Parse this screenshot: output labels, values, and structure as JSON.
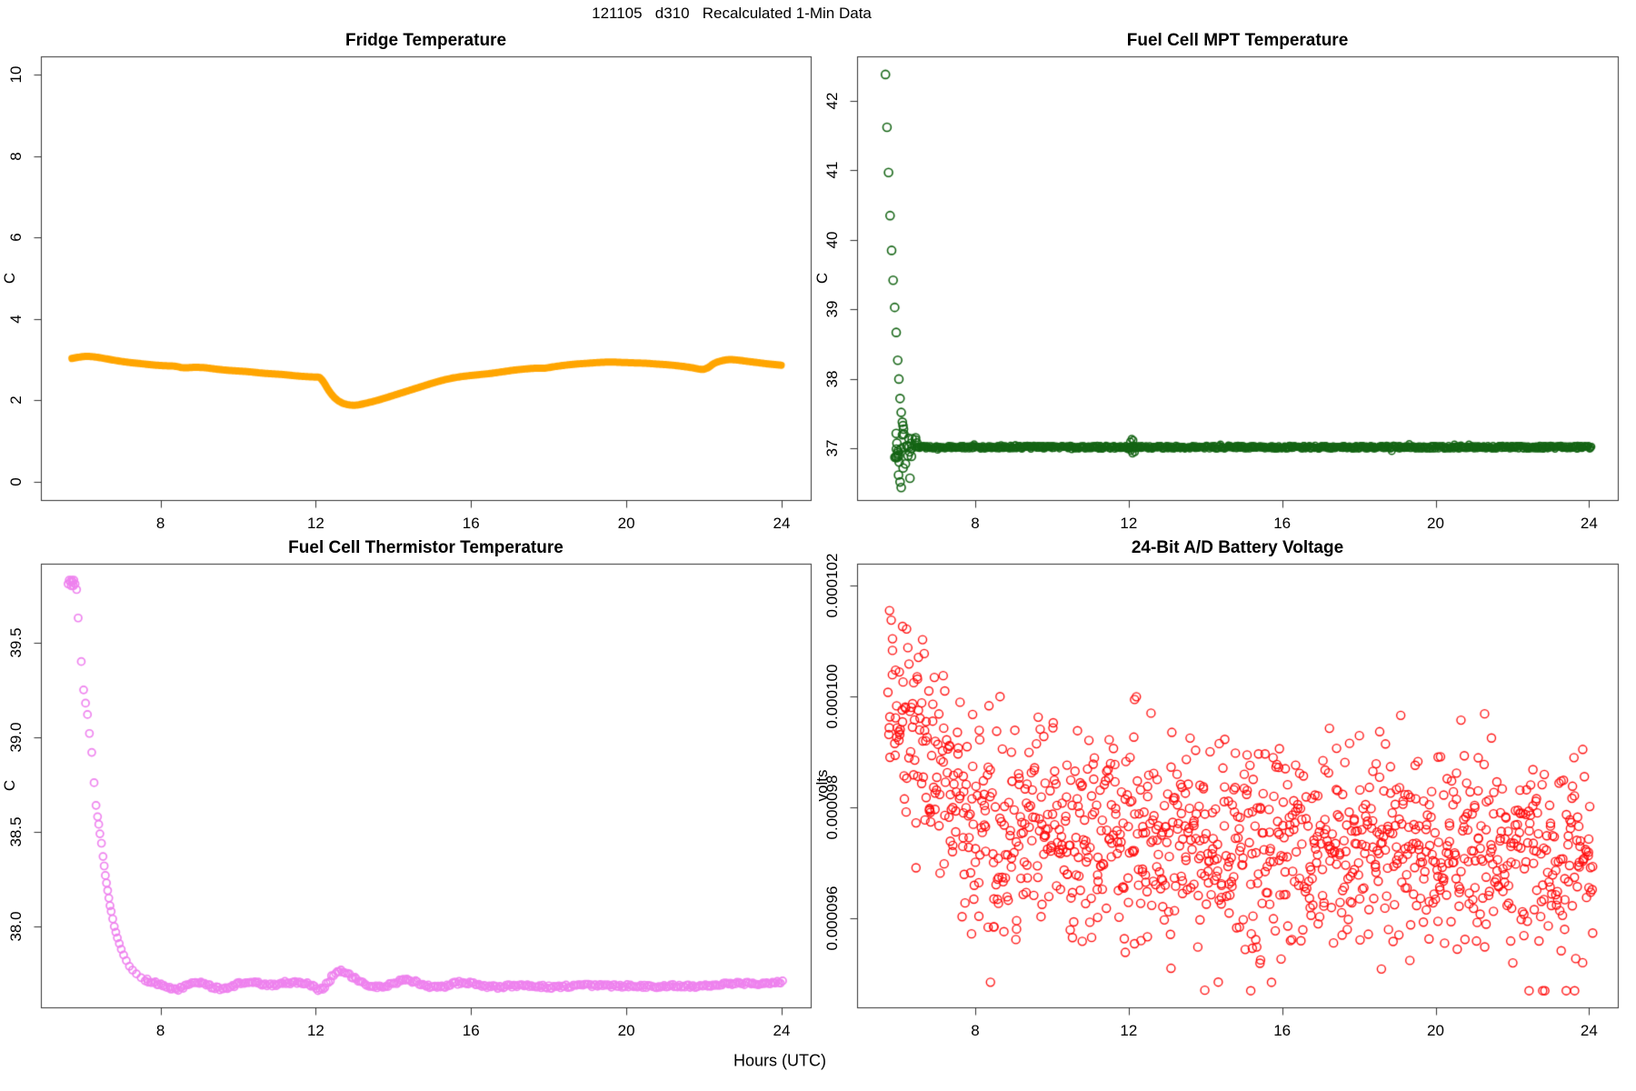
{
  "figure": {
    "title": "121105   d310   Recalculated 1-Min Data",
    "xlabel": "Hours (UTC)",
    "background": "#FFFFFF",
    "axis_color": "#333333",
    "text_color": "#000000"
  },
  "chart_data": [
    {
      "id": "fridge-temperature",
      "type": "line",
      "title": "Fridge Temperature",
      "ylabel": "C",
      "color": "#FFA500",
      "line_width": 8,
      "xlim": [
        4.92,
        24.75
      ],
      "ylim": [
        -0.45,
        10.45
      ],
      "xticks": {
        "values": [
          8,
          12,
          16,
          20,
          24
        ],
        "labels": [
          "8",
          "12",
          "16",
          "20",
          "24"
        ]
      },
      "yticks": {
        "values": [
          0,
          2,
          4,
          6,
          8,
          10
        ],
        "labels": [
          "0",
          "2",
          "4",
          "6",
          "8",
          "10"
        ]
      },
      "points": [
        [
          5.72,
          3.03
        ],
        [
          5.9,
          3.06
        ],
        [
          6.1,
          3.08
        ],
        [
          6.35,
          3.06
        ],
        [
          6.6,
          3.02
        ],
        [
          6.9,
          2.97
        ],
        [
          7.2,
          2.93
        ],
        [
          7.5,
          2.9
        ],
        [
          7.8,
          2.87
        ],
        [
          8.1,
          2.85
        ],
        [
          8.35,
          2.84
        ],
        [
          8.6,
          2.8
        ],
        [
          8.9,
          2.81
        ],
        [
          9.15,
          2.8
        ],
        [
          9.4,
          2.77
        ],
        [
          9.7,
          2.74
        ],
        [
          10.0,
          2.72
        ],
        [
          10.3,
          2.7
        ],
        [
          10.6,
          2.67
        ],
        [
          10.9,
          2.65
        ],
        [
          11.2,
          2.63
        ],
        [
          11.5,
          2.6
        ],
        [
          11.8,
          2.58
        ],
        [
          12.0,
          2.57
        ],
        [
          12.1,
          2.56
        ],
        [
          12.2,
          2.45
        ],
        [
          12.35,
          2.22
        ],
        [
          12.5,
          2.05
        ],
        [
          12.65,
          1.95
        ],
        [
          12.8,
          1.9
        ],
        [
          12.95,
          1.88
        ],
        [
          13.1,
          1.89
        ],
        [
          13.3,
          1.93
        ],
        [
          13.55,
          1.99
        ],
        [
          13.8,
          2.06
        ],
        [
          14.1,
          2.15
        ],
        [
          14.4,
          2.24
        ],
        [
          14.7,
          2.33
        ],
        [
          15.0,
          2.42
        ],
        [
          15.3,
          2.5
        ],
        [
          15.6,
          2.56
        ],
        [
          15.9,
          2.6
        ],
        [
          16.2,
          2.63
        ],
        [
          16.5,
          2.66
        ],
        [
          16.8,
          2.7
        ],
        [
          17.1,
          2.74
        ],
        [
          17.4,
          2.77
        ],
        [
          17.7,
          2.79
        ],
        [
          17.9,
          2.79
        ],
        [
          18.1,
          2.82
        ],
        [
          18.4,
          2.86
        ],
        [
          18.7,
          2.89
        ],
        [
          19.0,
          2.91
        ],
        [
          19.3,
          2.93
        ],
        [
          19.6,
          2.94
        ],
        [
          19.9,
          2.93
        ],
        [
          20.2,
          2.92
        ],
        [
          20.5,
          2.91
        ],
        [
          20.8,
          2.89
        ],
        [
          21.1,
          2.87
        ],
        [
          21.4,
          2.84
        ],
        [
          21.7,
          2.8
        ],
        [
          21.95,
          2.76
        ],
        [
          22.1,
          2.8
        ],
        [
          22.25,
          2.9
        ],
        [
          22.45,
          2.97
        ],
        [
          22.65,
          3.0
        ],
        [
          22.85,
          2.99
        ],
        [
          23.1,
          2.96
        ],
        [
          23.35,
          2.93
        ],
        [
          23.6,
          2.9
        ],
        [
          23.8,
          2.88
        ],
        [
          24.02,
          2.86
        ]
      ]
    },
    {
      "id": "fuel-cell-mpt-temperature",
      "type": "scatter",
      "title": "Fuel Cell MPT Temperature",
      "ylabel": "C",
      "color": "#146414",
      "marker": "open-circle",
      "marker_radius": 4.5,
      "xlim": [
        4.92,
        24.75
      ],
      "ylim": [
        36.26,
        42.64
      ],
      "xticks": {
        "values": [
          8,
          12,
          16,
          20,
          24
        ],
        "labels": [
          "8",
          "12",
          "16",
          "20",
          "24"
        ]
      },
      "yticks": {
        "values": [
          37,
          38,
          39,
          40,
          41,
          42
        ],
        "labels": [
          "37",
          "38",
          "39",
          "40",
          "41",
          "42"
        ]
      },
      "decay_points": [
        [
          5.66,
          42.38
        ],
        [
          5.7,
          41.62
        ],
        [
          5.74,
          40.97
        ],
        [
          5.78,
          40.35
        ],
        [
          5.82,
          39.85
        ],
        [
          5.86,
          39.42
        ],
        [
          5.9,
          39.03
        ],
        [
          5.94,
          38.67
        ],
        [
          5.98,
          38.27
        ],
        [
          6.01,
          38.0
        ],
        [
          6.04,
          37.72
        ],
        [
          6.07,
          37.52
        ],
        [
          6.1,
          37.38
        ],
        [
          6.13,
          37.28
        ]
      ],
      "cluster": {
        "x_min": 5.9,
        "x_max": 6.5,
        "y_center": 37.0,
        "y_sigma": 0.16,
        "count": 30,
        "outliers": [
          [
            6.0,
            36.62
          ],
          [
            6.04,
            36.52
          ],
          [
            6.07,
            36.44
          ],
          [
            6.12,
            36.72
          ],
          [
            6.18,
            36.78
          ]
        ]
      },
      "band": {
        "x_min": 6.45,
        "x_max": 24.08,
        "y": 37.02,
        "jitter": 0.045,
        "step": 0.019,
        "blip_points": [
          [
            12.04,
            37.1
          ],
          [
            12.08,
            37.14
          ],
          [
            12.12,
            37.12
          ],
          [
            12.1,
            36.93
          ],
          [
            12.16,
            36.95
          ],
          [
            12.06,
            36.97
          ]
        ]
      }
    },
    {
      "id": "fuel-cell-thermistor-temperature",
      "type": "scatter",
      "title": "Fuel Cell Thermistor Temperature",
      "ylabel": "C",
      "color": "#EE82EE",
      "marker": "open-circle",
      "marker_radius": 4,
      "xlim": [
        4.92,
        24.75
      ],
      "ylim": [
        37.573,
        39.917
      ],
      "xticks": {
        "values": [
          8,
          12,
          16,
          20,
          24
        ],
        "labels": [
          "8",
          "12",
          "16",
          "20",
          "24"
        ]
      },
      "yticks": {
        "values": [
          38.0,
          38.5,
          39.0,
          39.5
        ],
        "labels": [
          "38.0",
          "38.5",
          "39.0",
          "39.5"
        ]
      },
      "head_cluster": [
        [
          5.62,
          39.81
        ],
        [
          5.65,
          39.83
        ],
        [
          5.68,
          39.82
        ],
        [
          5.71,
          39.83
        ],
        [
          5.74,
          39.82
        ],
        [
          5.77,
          39.83
        ],
        [
          5.8,
          39.81
        ],
        [
          5.7,
          39.8
        ],
        [
          5.76,
          39.8
        ],
        [
          5.84,
          39.78
        ]
      ],
      "decay_points": [
        [
          5.88,
          39.63
        ],
        [
          5.96,
          39.4
        ],
        [
          6.02,
          39.25
        ],
        [
          6.07,
          39.18
        ],
        [
          6.12,
          39.12
        ],
        [
          6.17,
          39.02
        ],
        [
          6.23,
          38.92
        ],
        [
          6.29,
          38.76
        ],
        [
          6.34,
          38.64
        ],
        [
          6.38,
          38.58
        ],
        [
          6.41,
          38.54
        ],
        [
          6.44,
          38.49
        ],
        [
          6.48,
          38.44
        ],
        [
          6.52,
          38.37
        ],
        [
          6.55,
          38.32
        ],
        [
          6.58,
          38.27
        ],
        [
          6.61,
          38.23
        ],
        [
          6.64,
          38.19
        ],
        [
          6.67,
          38.15
        ],
        [
          6.7,
          38.11
        ],
        [
          6.73,
          38.08
        ],
        [
          6.77,
          38.04
        ],
        [
          6.81,
          38.0
        ],
        [
          6.85,
          37.97
        ],
        [
          6.89,
          37.94
        ],
        [
          6.94,
          37.91
        ],
        [
          6.99,
          37.88
        ],
        [
          7.05,
          37.85
        ],
        [
          7.12,
          37.82
        ],
        [
          7.2,
          37.79
        ],
        [
          7.28,
          37.77
        ],
        [
          7.38,
          37.75
        ],
        [
          7.5,
          37.73
        ]
      ],
      "tail_anchors": [
        [
          7.6,
          37.72
        ],
        [
          7.8,
          37.705
        ],
        [
          8.0,
          37.69
        ],
        [
          8.2,
          37.675
        ],
        [
          8.45,
          37.67
        ],
        [
          8.7,
          37.69
        ],
        [
          8.9,
          37.705
        ],
        [
          9.1,
          37.7
        ],
        [
          9.35,
          37.68
        ],
        [
          9.6,
          37.67
        ],
        [
          9.9,
          37.69
        ],
        [
          10.2,
          37.705
        ],
        [
          10.5,
          37.7
        ],
        [
          10.8,
          37.69
        ],
        [
          11.1,
          37.7
        ],
        [
          11.4,
          37.705
        ],
        [
          11.7,
          37.7
        ],
        [
          11.95,
          37.685
        ],
        [
          12.1,
          37.665
        ],
        [
          12.3,
          37.7
        ],
        [
          12.5,
          37.755
        ],
        [
          12.65,
          37.765
        ],
        [
          12.8,
          37.75
        ],
        [
          13.0,
          37.725
        ],
        [
          13.2,
          37.7
        ],
        [
          13.45,
          37.685
        ],
        [
          13.7,
          37.68
        ],
        [
          14.0,
          37.7
        ],
        [
          14.3,
          37.715
        ],
        [
          14.6,
          37.705
        ],
        [
          14.9,
          37.685
        ],
        [
          15.2,
          37.68
        ],
        [
          15.5,
          37.695
        ],
        [
          15.8,
          37.705
        ],
        [
          16.1,
          37.695
        ],
        [
          16.4,
          37.685
        ],
        [
          16.7,
          37.68
        ],
        [
          17.0,
          37.685
        ],
        [
          17.3,
          37.69
        ],
        [
          17.7,
          37.685
        ],
        [
          18.1,
          37.68
        ],
        [
          18.5,
          37.685
        ],
        [
          18.9,
          37.69
        ],
        [
          19.3,
          37.688
        ],
        [
          19.7,
          37.685
        ],
        [
          20.1,
          37.688
        ],
        [
          20.5,
          37.685
        ],
        [
          20.9,
          37.683
        ],
        [
          21.3,
          37.688
        ],
        [
          21.7,
          37.685
        ],
        [
          22.1,
          37.69
        ],
        [
          22.5,
          37.695
        ],
        [
          22.9,
          37.7
        ],
        [
          23.3,
          37.7
        ],
        [
          23.7,
          37.703
        ],
        [
          24.05,
          37.707
        ]
      ],
      "tail_step": 0.045
    },
    {
      "id": "battery-voltage-24bit-ad",
      "type": "scatter",
      "title": "24-Bit A/D Battery Voltage",
      "ylabel": "volts",
      "color": "#FF1010",
      "marker": "open-circle",
      "marker_radius": 4.5,
      "xlim": [
        4.92,
        24.75
      ],
      "ylim": [
        9.44e-05,
        0.0001024
      ],
      "xticks": {
        "values": [
          8,
          12,
          16,
          20,
          24
        ],
        "labels": [
          "8",
          "12",
          "16",
          "20",
          "24"
        ]
      },
      "yticks": {
        "values": [
          9.6e-05,
          9.8e-05,
          0.0001,
          0.000102
        ],
        "labels": [
          "0.000096",
          "0.000098",
          "0.000100",
          "0.000102"
        ]
      },
      "generated_scatter": {
        "count": 1150,
        "seed": 20121105,
        "x_min": 5.72,
        "x_max": 24.1,
        "sigma": 9.2e-07,
        "sigma_left": 1.15e-06,
        "left_cutoff": 7.4,
        "low_tail_prob": 0.05,
        "low_tail_max": 2.2e-06,
        "clip": [
          9.47e-05,
          0.00010215
        ],
        "trend": [
          [
            5.72,
            9.95e-05
          ],
          [
            6.0,
            9.99e-05
          ],
          [
            6.4,
            9.97e-05
          ],
          [
            6.8,
            9.91e-05
          ],
          [
            7.2,
            9.85e-05
          ],
          [
            7.6,
            9.81e-05
          ],
          [
            8.0,
            9.78e-05
          ],
          [
            8.6,
            9.77e-05
          ],
          [
            9.4,
            9.76e-05
          ],
          [
            10.2,
            9.76e-05
          ],
          [
            11.0,
            9.75e-05
          ],
          [
            12.0,
            9.75e-05
          ],
          [
            13.0,
            9.74e-05
          ],
          [
            14.0,
            9.74e-05
          ],
          [
            15.0,
            9.73e-05
          ],
          [
            16.0,
            9.73e-05
          ],
          [
            17.0,
            9.74e-05
          ],
          [
            18.0,
            9.73e-05
          ],
          [
            19.0,
            9.73e-05
          ],
          [
            20.0,
            9.72e-05
          ],
          [
            21.0,
            9.72e-05
          ],
          [
            22.0,
            9.73e-05
          ],
          [
            23.0,
            9.71e-05
          ],
          [
            24.0,
            9.7e-05
          ]
        ]
      }
    }
  ]
}
